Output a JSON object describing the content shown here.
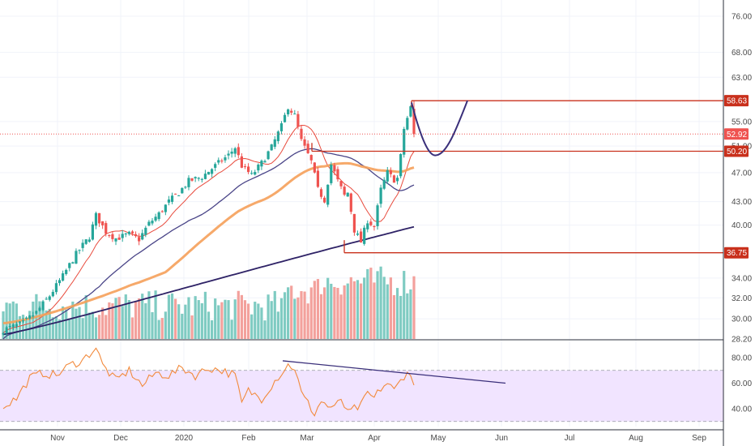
{
  "chart_data": {
    "type": "candlestick",
    "x_ticks": [
      "Nov",
      "Dec",
      "2020",
      "Feb",
      "Mar",
      "Apr",
      "May",
      "Jun",
      "Jul",
      "Aug",
      "Sep"
    ],
    "price_axis": {
      "scale": "log",
      "range": [
        28.2,
        80.0
      ],
      "ticks": [
        "76.00",
        "68.00",
        "63.00",
        "55.00",
        "51.00",
        "47.00",
        "43.00",
        "40.00",
        "34.00",
        "32.00",
        "30.00",
        "28.20"
      ]
    },
    "price_tags": [
      {
        "label": "58.63",
        "value": 58.63,
        "color": "#c9301c"
      },
      {
        "label": "52.92",
        "value": 52.92,
        "color": "#ef5350"
      },
      {
        "label": "50.20",
        "value": 50.2,
        "color": "#c9301c"
      },
      {
        "label": "36.75",
        "value": 36.75,
        "color": "#c9301c"
      }
    ],
    "horizontal_levels": [
      {
        "value": 58.63,
        "color": "#c9301c"
      },
      {
        "value": 50.2,
        "color": "#c9301c"
      },
      {
        "value": 36.75,
        "color": "#c9301c"
      }
    ],
    "last_close": 52.92,
    "moving_averages": [
      {
        "color": "#e84a3c"
      },
      {
        "color": "#4a4588"
      },
      {
        "color": "#f5a05a"
      },
      {
        "color": "#2e2266"
      }
    ],
    "rsi": {
      "ticks": [
        "80.00",
        "60.00",
        "40.00"
      ],
      "band": [
        30,
        70
      ],
      "band_color": "#f1e4ff",
      "line_color": "#f28a3c"
    },
    "colors": {
      "up": "#26a69a",
      "down": "#ef5350",
      "vol_up": "#7fcbc2",
      "vol_down": "#f3a19c"
    }
  }
}
